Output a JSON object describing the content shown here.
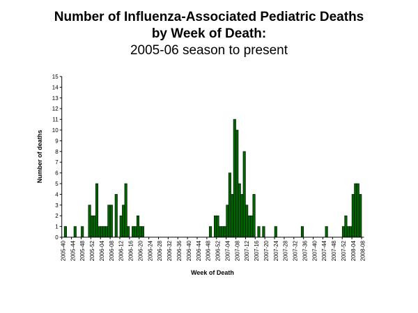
{
  "chart_data": {
    "type": "bar",
    "title": "Number of Influenza-Associated Pediatric Deaths",
    "title_line2": "by Week of Death:",
    "subtitle": "2005-06 season to present",
    "xlabel": "Week of Death",
    "ylabel": "Number of deaths",
    "ylim": [
      0,
      15
    ],
    "yticks": [
      0,
      1,
      2,
      3,
      4,
      5,
      6,
      7,
      8,
      9,
      10,
      11,
      12,
      13,
      14,
      15
    ],
    "grid": false,
    "legend": "none",
    "bar_color": "#006600",
    "bar_edge_color": "#000000",
    "label_every": 4,
    "categories": [
      "2005-40",
      "2005-41",
      "2005-42",
      "2005-43",
      "2005-44",
      "2005-45",
      "2005-46",
      "2005-47",
      "2005-48",
      "2005-49",
      "2005-50",
      "2005-51",
      "2005-52",
      "2006-01",
      "2006-02",
      "2006-03",
      "2006-04",
      "2006-05",
      "2006-06",
      "2006-07",
      "2006-08",
      "2006-09",
      "2006-10",
      "2006-11",
      "2006-12",
      "2006-13",
      "2006-14",
      "2006-15",
      "2006-16",
      "2006-17",
      "2006-18",
      "2006-19",
      "2006-20",
      "2006-21",
      "2006-22",
      "2006-23",
      "2006-24",
      "2006-25",
      "2006-26",
      "2006-27",
      "2006-28",
      "2006-29",
      "2006-30",
      "2006-31",
      "2006-32",
      "2006-33",
      "2006-34",
      "2006-35",
      "2006-36",
      "2006-37",
      "2006-38",
      "2006-39",
      "2006-40",
      "2006-41",
      "2006-42",
      "2006-43",
      "2006-44",
      "2006-45",
      "2006-46",
      "2006-47",
      "2006-48",
      "2006-49",
      "2006-50",
      "2006-51",
      "2006-52",
      "2007-01",
      "2007-02",
      "2007-03",
      "2007-04",
      "2007-05",
      "2007-06",
      "2007-07",
      "2007-08",
      "2007-09",
      "2007-10",
      "2007-11",
      "2007-12",
      "2007-13",
      "2007-14",
      "2007-15",
      "2007-16",
      "2007-17",
      "2007-18",
      "2007-19",
      "2007-20",
      "2007-21",
      "2007-22",
      "2007-23",
      "2007-24",
      "2007-25",
      "2007-26",
      "2007-27",
      "2007-28",
      "2007-29",
      "2007-30",
      "2007-31",
      "2007-32",
      "2007-33",
      "2007-34",
      "2007-35",
      "2007-36",
      "2007-37",
      "2007-38",
      "2007-39",
      "2007-40",
      "2007-41",
      "2007-42",
      "2007-43",
      "2007-44",
      "2007-45",
      "2007-46",
      "2007-47",
      "2007-48",
      "2007-49",
      "2007-50",
      "2007-51",
      "2007-52",
      "2008-01",
      "2008-02",
      "2008-03",
      "2008-04",
      "2008-05",
      "2008-06",
      "2008-07",
      "2008-08"
    ],
    "values": [
      0,
      1,
      0,
      0,
      0,
      1,
      0,
      0,
      1,
      0,
      0,
      3,
      2,
      2,
      5,
      1,
      1,
      1,
      1,
      3,
      3,
      0,
      4,
      0,
      2,
      3,
      5,
      1,
      0,
      1,
      1,
      2,
      1,
      1,
      0,
      0,
      0,
      0,
      0,
      0,
      0,
      0,
      0,
      0,
      0,
      0,
      0,
      0,
      0,
      0,
      0,
      0,
      0,
      0,
      0,
      0,
      0,
      0,
      0,
      0,
      0,
      1,
      0,
      2,
      2,
      1,
      1,
      1,
      3,
      6,
      4,
      11,
      10,
      5,
      4,
      8,
      3,
      2,
      2,
      4,
      0,
      1,
      0,
      1,
      0,
      0,
      0,
      0,
      1,
      0,
      0,
      0,
      0,
      0,
      0,
      0,
      0,
      0,
      0,
      1,
      0,
      0,
      0,
      0,
      0,
      0,
      0,
      0,
      0,
      1,
      0,
      0,
      0,
      0,
      0,
      0,
      1,
      2,
      1,
      1,
      4,
      5,
      5,
      4,
      0
    ]
  }
}
